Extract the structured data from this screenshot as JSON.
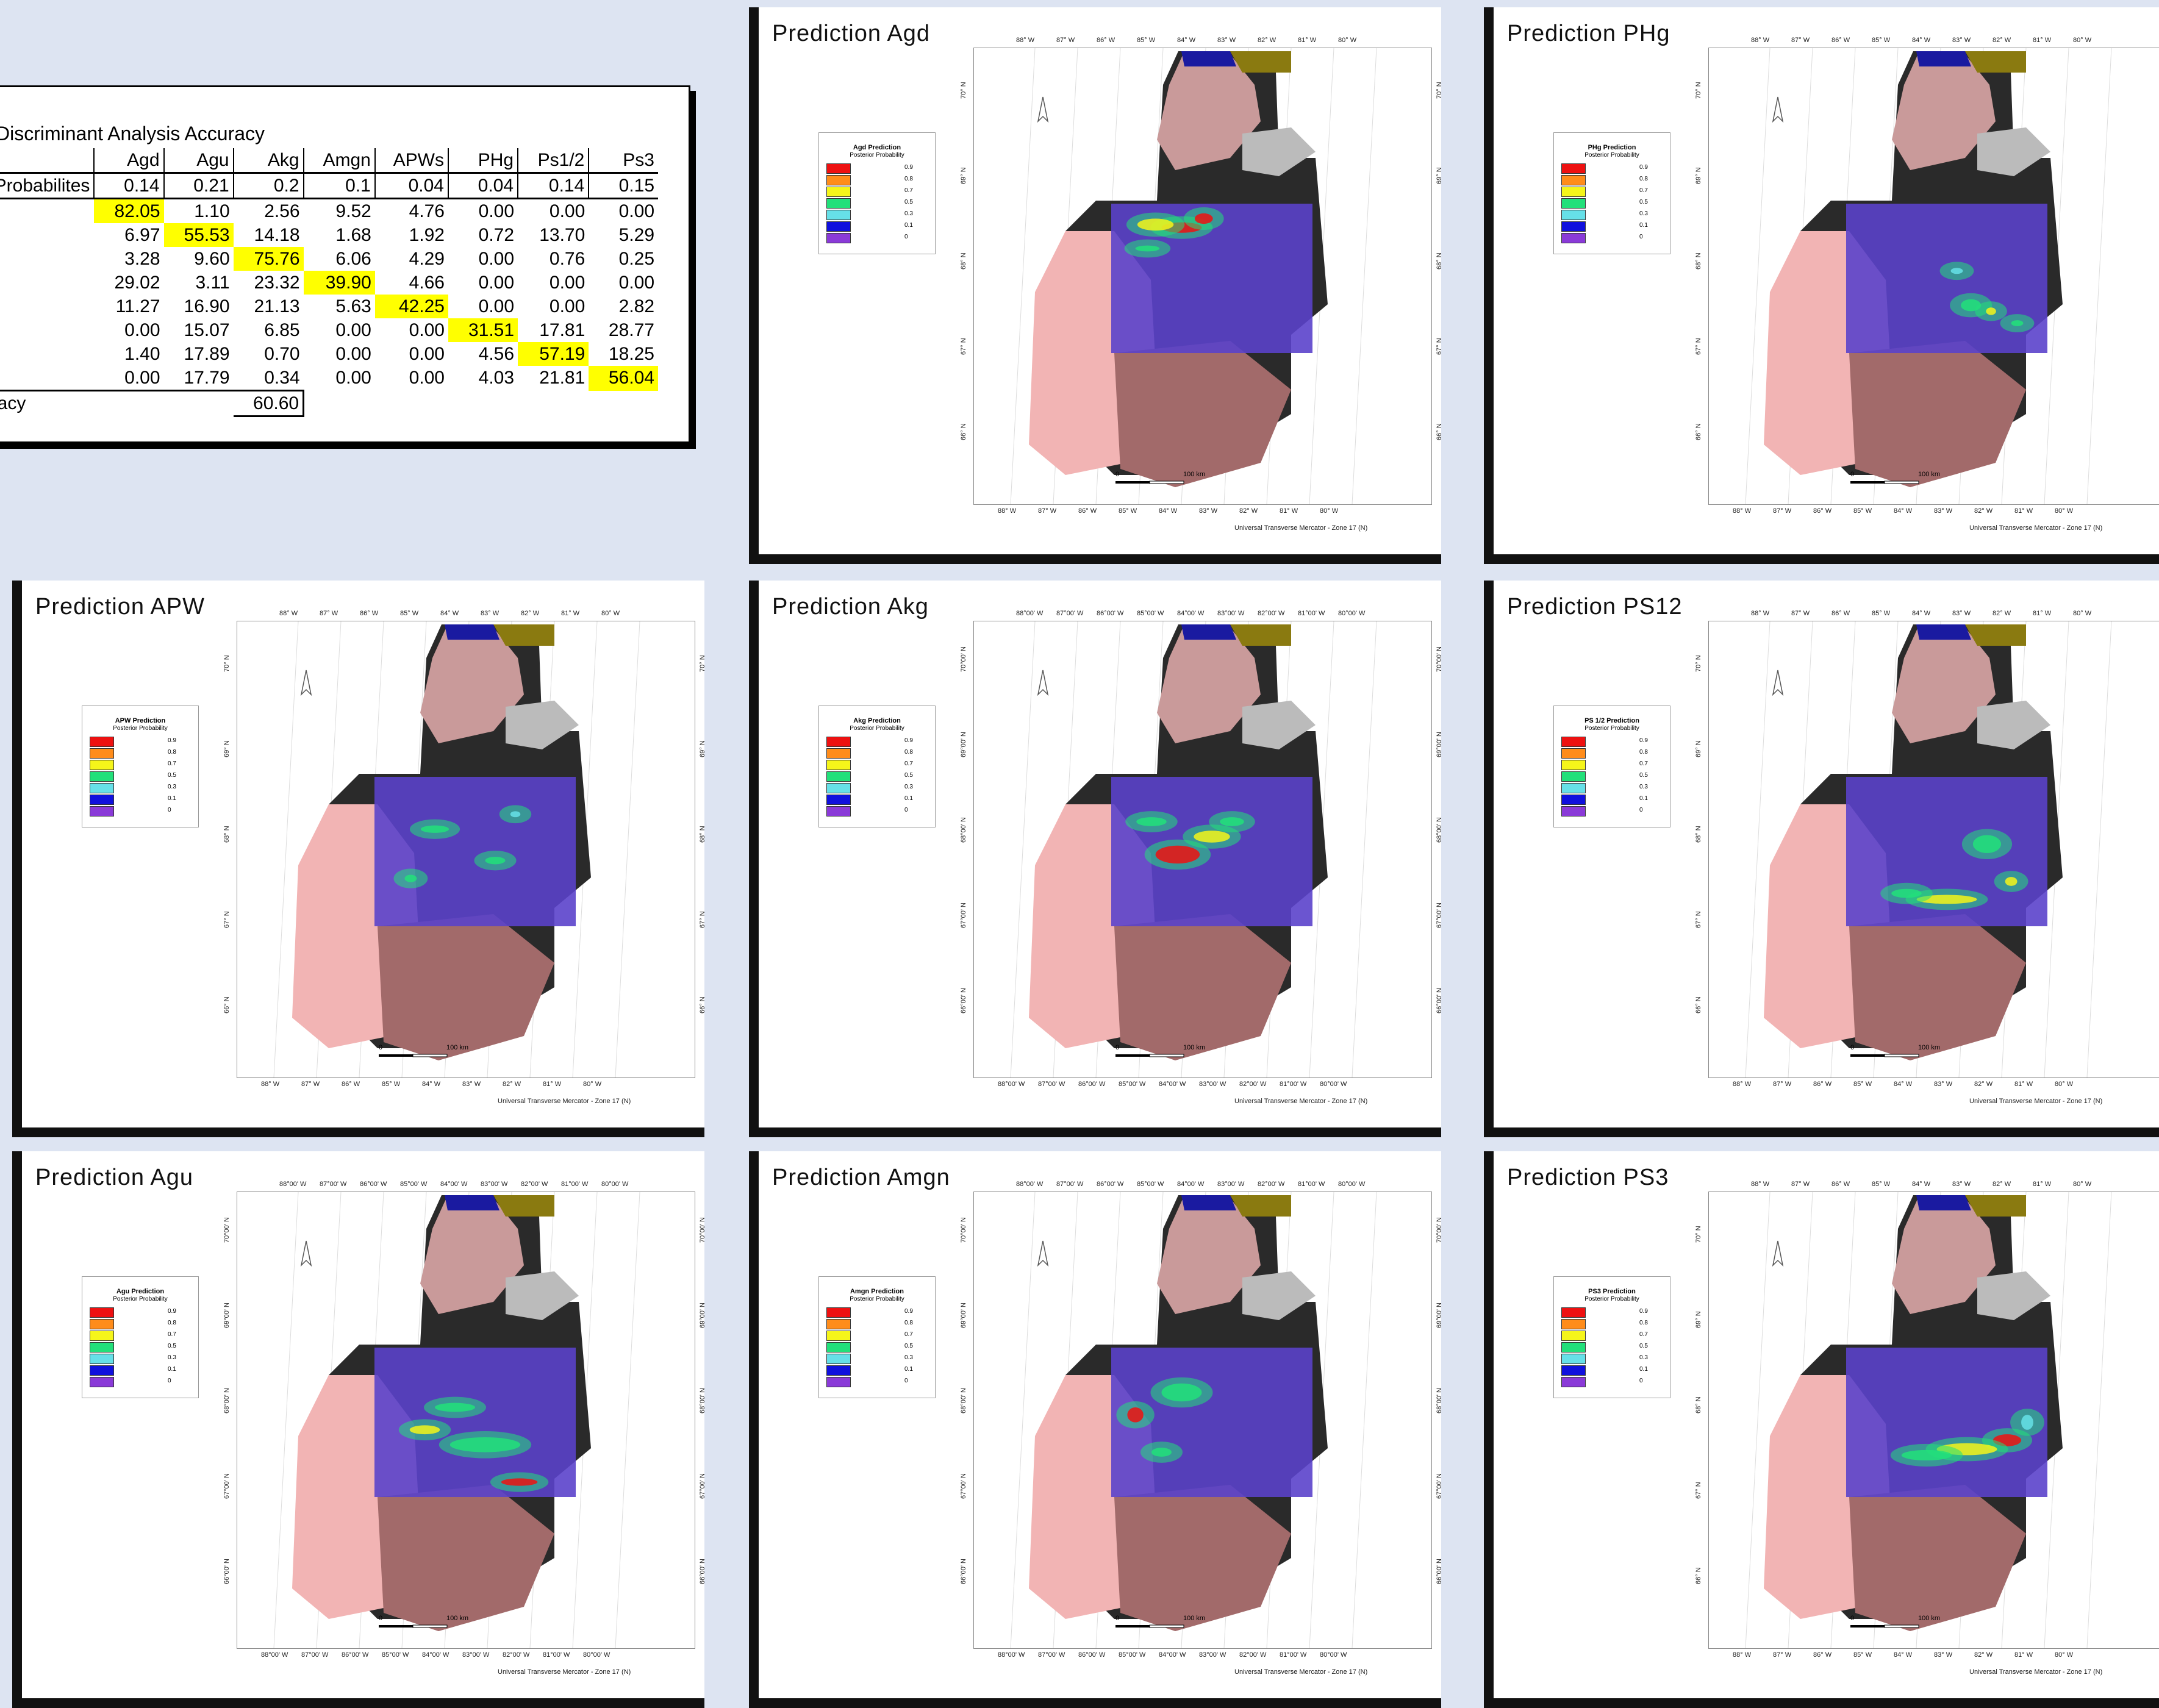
{
  "table": {
    "title": "Discriminant Analysis Accuracy",
    "columns": [
      "Agd",
      "Agu",
      "Akg",
      "Amgn",
      "APWs",
      "PHg",
      "Ps1/2",
      "Ps3"
    ],
    "prior_label": "Prior Probabilites",
    "priors": [
      "0.14",
      "0.21",
      "0.2",
      "0.1",
      "0.04",
      "0.04",
      "0.14",
      "0.15"
    ],
    "rows": [
      [
        "82.05",
        "1.10",
        "2.56",
        "9.52",
        "4.76",
        "0.00",
        "0.00",
        "0.00"
      ],
      [
        "6.97",
        "55.53",
        "14.18",
        "1.68",
        "1.92",
        "0.72",
        "13.70",
        "5.29"
      ],
      [
        "3.28",
        "9.60",
        "75.76",
        "6.06",
        "4.29",
        "0.00",
        "0.76",
        "0.25"
      ],
      [
        "29.02",
        "3.11",
        "23.32",
        "39.90",
        "4.66",
        "0.00",
        "0.00",
        "0.00"
      ],
      [
        "11.27",
        "16.90",
        "21.13",
        "5.63",
        "42.25",
        "0.00",
        "0.00",
        "2.82"
      ],
      [
        "0.00",
        "15.07",
        "6.85",
        "0.00",
        "0.00",
        "31.51",
        "17.81",
        "28.77"
      ],
      [
        "1.40",
        "17.89",
        "0.70",
        "0.00",
        "0.00",
        "4.56",
        "57.19",
        "18.25"
      ],
      [
        "0.00",
        "17.79",
        "0.34",
        "0.00",
        "0.00",
        "4.03",
        "21.81",
        "56.04"
      ]
    ],
    "total_label": "Accuracy",
    "total_value": "60.60",
    "highlight_color": "#ffff00"
  },
  "panels": [
    {
      "title": "Prediction Agd",
      "legend_title": "Agd Prediction",
      "lon_style": "deg",
      "heat": "agd"
    },
    {
      "title": "Prediction PHg",
      "legend_title": "PHg Prediction",
      "lon_style": "deg",
      "heat": "phg"
    },
    {
      "title": "Prediction APW",
      "legend_title": "APW Prediction",
      "lon_style": "deg",
      "heat": "apw"
    },
    {
      "title": "Prediction Akg",
      "legend_title": "Akg Prediction",
      "lon_style": "min",
      "heat": "akg"
    },
    {
      "title": "Prediction PS12",
      "legend_title": "PS 1/2 Prediction",
      "lon_style": "deg",
      "heat": "ps12"
    },
    {
      "title": "Prediction Agu",
      "legend_title": "Agu Prediction",
      "lon_style": "min",
      "heat": "agu"
    },
    {
      "title": "Prediction Amgn",
      "legend_title": "Amgn Prediction",
      "lon_style": "min",
      "heat": "amgn"
    },
    {
      "title": "Prediction PS3",
      "legend_title": "PS3 Prediction",
      "lon_style": "deg",
      "heat": "ps3"
    }
  ],
  "legend": {
    "subtitle": "Posterior Probability",
    "classes": [
      {
        "value": "0.9",
        "color": "#ee1111"
      },
      {
        "value": "0.8",
        "color": "#ff8c1a"
      },
      {
        "value": "0.7",
        "color": "#f5f51a"
      },
      {
        "value": "0.5",
        "color": "#22e07a"
      },
      {
        "value": "0.3",
        "color": "#66e0e8"
      },
      {
        "value": "0.1",
        "color": "#1010dd"
      },
      {
        "value": "0",
        "color": "#8a3ad8"
      }
    ]
  },
  "map": {
    "lon_labels_deg": [
      "88° W",
      "87° W",
      "86° W",
      "85° W",
      "84° W",
      "83° W",
      "82° W",
      "81° W",
      "80° W"
    ],
    "lon_labels_min": [
      "88°00' W",
      "87°00' W",
      "86°00' W",
      "85°00' W",
      "84°00' W",
      "83°00' W",
      "82°00' W",
      "81°00' W",
      "80°00' W"
    ],
    "lat_labels_deg": [
      "70° N",
      "69° N",
      "68° N",
      "67° N",
      "66° N"
    ],
    "lat_labels_min": [
      "70°00' N",
      "69°00' N",
      "68°00' N",
      "67°00' N",
      "66°00' N"
    ],
    "scale_zero": "0",
    "scale_label": "100 km",
    "projection": "Universal Transverse Mercator - Zone 17 (N)"
  }
}
